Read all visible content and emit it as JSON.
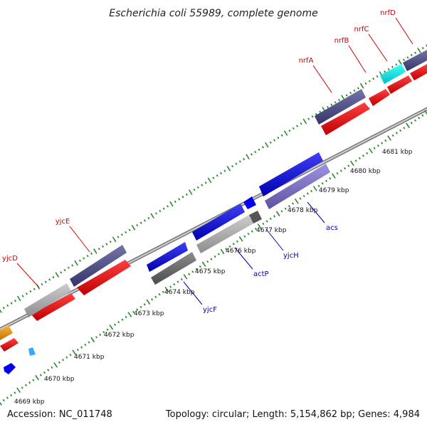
{
  "title": "Escherichia coli 55989, complete genome",
  "footer": {
    "accession": "Accession: NC_011748",
    "summary": "Topology: circular; Length: 5,154,862 bp; Genes: 4,984"
  },
  "kbp_labels": [
    "4669 kbp",
    "4670 kbp",
    "4671 kbp",
    "4672 kbp",
    "4673 kbp",
    "4674 kbp",
    "4675 kbp",
    "4676 kbp",
    "4677 kbp",
    "4678 kbp",
    "4679 kbp",
    "4680 kbp",
    "4681 kbp"
  ],
  "genes_top": [
    "yjcD",
    "yjcE",
    "nrfA",
    "nrfB",
    "nrfC",
    "nrfD"
  ],
  "genes_bottom": [
    "yjcF",
    "actP",
    "yjcH",
    "acs"
  ],
  "colors": {
    "backbone": "#9a9a9a",
    "tick": "#2a8a2a",
    "red": "#ff0000",
    "navy": "#46468c",
    "blue": "#0000ee",
    "lavender": "#7b6fd6",
    "lightgray": "#bcbcbc",
    "darkgray": "#666666",
    "cyan": "#00ffff",
    "orange": "#ff9900",
    "skyblue": "#3399ff",
    "label_red": "#cc0000",
    "label_blue": "#0000aa"
  }
}
